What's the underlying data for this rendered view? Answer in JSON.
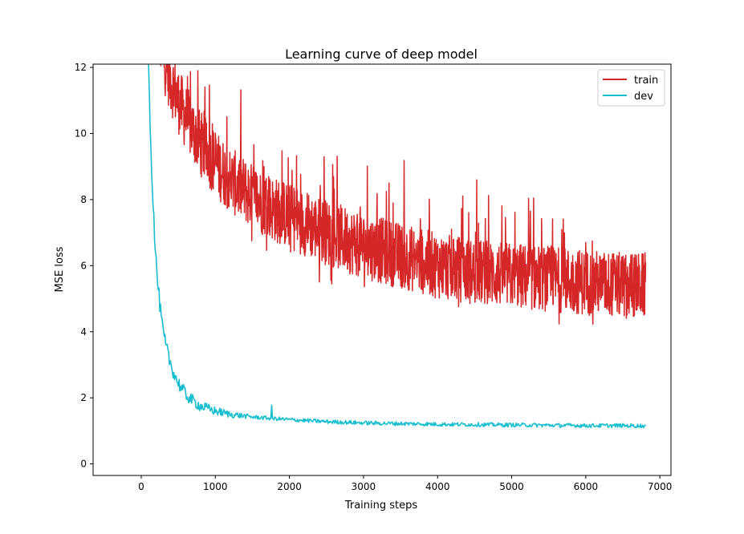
{
  "chart_data": {
    "type": "line",
    "title": "Learning curve of deep model",
    "xlabel": "Training steps",
    "ylabel": "MSE loss",
    "xlim": [
      -650,
      7150
    ],
    "ylim": [
      -0.35,
      12.1
    ],
    "x_ticks": [
      0,
      1000,
      2000,
      3000,
      4000,
      5000,
      6000,
      7000
    ],
    "y_ticks": [
      0,
      2,
      4,
      6,
      8,
      10,
      12
    ],
    "x_tick_labels": [
      "0",
      "1000",
      "2000",
      "3000",
      "4000",
      "5000",
      "6000",
      "7000"
    ],
    "y_tick_labels": [
      "0",
      "2",
      "4",
      "6",
      "8",
      "10",
      "12"
    ],
    "grid": false,
    "legend_position": "top-right",
    "series": [
      {
        "name": "train",
        "color": "#d62728",
        "style": "noisy",
        "x": [
          200,
          300,
          400,
          500,
          600,
          700,
          800,
          1000,
          1200,
          1500,
          1800,
          2000,
          2500,
          3000,
          3500,
          4000,
          4500,
          5000,
          5500,
          6000,
          6500,
          6810
        ],
        "values": [
          13.5,
          12.3,
          11.6,
          11.0,
          10.5,
          10.1,
          9.7,
          9.1,
          8.6,
          8.1,
          7.7,
          7.5,
          7.0,
          6.6,
          6.3,
          6.0,
          5.8,
          5.7,
          5.6,
          5.5,
          5.4,
          5.4
        ],
        "noise": 1.0
      },
      {
        "name": "dev",
        "color": "#17becf",
        "style": "noisy",
        "x": [
          90,
          100,
          110,
          120,
          140,
          160,
          180,
          200,
          230,
          260,
          300,
          350,
          400,
          450,
          500,
          600,
          700,
          800,
          1000,
          1200,
          1500,
          1750,
          2000,
          2500,
          3000,
          3500,
          4000,
          4500,
          5000,
          5500,
          6000,
          6500,
          6810
        ],
        "values": [
          13.0,
          12.2,
          11.0,
          10.4,
          9.0,
          7.9,
          7.0,
          6.1,
          5.3,
          4.6,
          3.9,
          3.4,
          3.0,
          2.7,
          2.45,
          2.1,
          1.9,
          1.75,
          1.6,
          1.5,
          1.42,
          1.38,
          1.34,
          1.28,
          1.24,
          1.22,
          1.2,
          1.19,
          1.18,
          1.17,
          1.16,
          1.16,
          1.15
        ],
        "noise": 0.06,
        "spikes": [
          {
            "x": 1760,
            "y": 1.78
          }
        ]
      }
    ]
  }
}
